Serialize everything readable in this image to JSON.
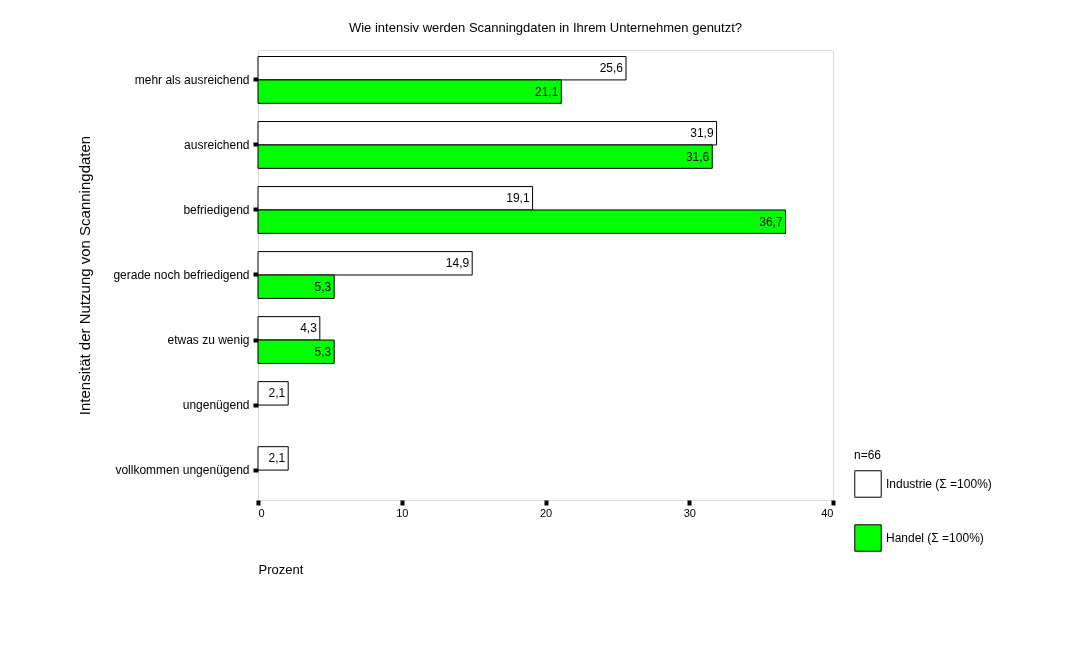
{
  "chart_data": {
    "type": "bar",
    "orientation": "horizontal",
    "title": "Wie intensiv werden Scanningdaten in Ihrem Unternehmen genutzt?",
    "xlabel": "Prozent",
    "ylabel": "Intensität der Nutzung von Scanningdaten",
    "categories": [
      "mehr als ausreichend",
      "ausreichend",
      "befriedigend",
      "gerade noch befriedigend",
      "etwas zu wenig",
      "ungenügend",
      "vollkommen ungenügend"
    ],
    "series": [
      {
        "name": "Industrie  (Σ =100%)",
        "color": "#ffffff",
        "values": [
          25.6,
          31.9,
          19.1,
          14.9,
          4.3,
          2.1,
          2.1
        ],
        "value_labels": [
          "25,6",
          "31,9",
          "19,1",
          "14,9",
          "4,3",
          "2,1",
          "2,1"
        ]
      },
      {
        "name": "Handel     (Σ =100%)",
        "color": "#00ff00",
        "values": [
          21.1,
          31.6,
          36.7,
          5.3,
          5.3,
          null,
          null
        ],
        "value_labels": [
          "21,1",
          "31,6",
          "36,7",
          "5,3",
          "5,3",
          null,
          null
        ]
      }
    ],
    "xlim": [
      0,
      40
    ],
    "xticks": [
      0,
      10,
      20,
      30,
      40
    ],
    "grid": false,
    "legend": "bottom right",
    "annotations": [
      "n=66"
    ]
  }
}
